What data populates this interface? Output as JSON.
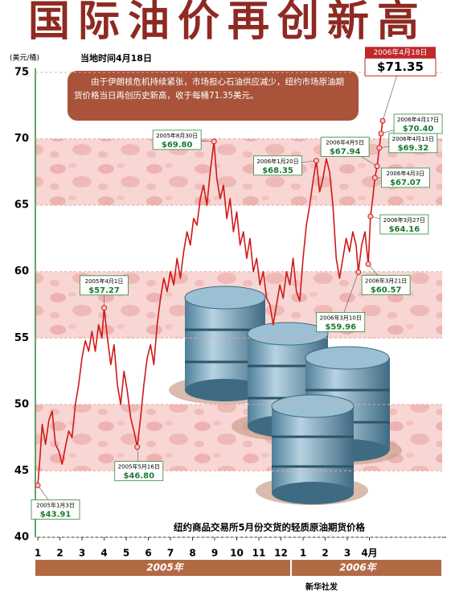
{
  "chart_data": {
    "type": "line",
    "title": "国际油价再创新高",
    "y_unit": "(美元/桶)",
    "subtitle": "当地时间4月18日",
    "description": "由于伊朗核危机持续紧张，市场担心石油供应减少，纽约市场原油期货价格当日再创历史新高，收于每桶71.35美元。",
    "caption": "纽约商品交易所5月份交货的轻质原油期货价格",
    "years": [
      "2005年",
      "2006年"
    ],
    "source": "新华社发",
    "ylim": [
      40,
      75
    ],
    "yticks": [
      40,
      45,
      50,
      55,
      60,
      65,
      70,
      75
    ],
    "xlim": [
      1,
      17
    ],
    "xticks": [
      {
        "value": 1,
        "label": "1"
      },
      {
        "value": 2,
        "label": "2"
      },
      {
        "value": 3,
        "label": "3"
      },
      {
        "value": 4,
        "label": "4"
      },
      {
        "value": 5,
        "label": "5"
      },
      {
        "value": 6,
        "label": "6"
      },
      {
        "value": 7,
        "label": "7"
      },
      {
        "value": 8,
        "label": "8"
      },
      {
        "value": 9,
        "label": "9"
      },
      {
        "value": 10,
        "label": "10"
      },
      {
        "value": 11,
        "label": "11"
      },
      {
        "value": 12,
        "label": "12"
      },
      {
        "value": 13,
        "label": "1"
      },
      {
        "value": 14,
        "label": "2"
      },
      {
        "value": 15,
        "label": "3"
      },
      {
        "value": 16,
        "label": "4月"
      }
    ],
    "color": "#d01818",
    "x": [
      1.0,
      1.1,
      1.2,
      1.35,
      1.5,
      1.65,
      1.8,
      1.95,
      2.1,
      2.25,
      2.4,
      2.55,
      2.7,
      2.85,
      3.0,
      3.15,
      3.3,
      3.45,
      3.6,
      3.75,
      3.9,
      4.0,
      4.15,
      4.3,
      4.45,
      4.6,
      4.75,
      4.9,
      5.05,
      5.2,
      5.35,
      5.5,
      5.65,
      5.8,
      5.95,
      6.1,
      6.25,
      6.4,
      6.55,
      6.7,
      6.85,
      7.0,
      7.15,
      7.3,
      7.45,
      7.6,
      7.75,
      7.9,
      8.05,
      8.2,
      8.35,
      8.5,
      8.65,
      8.8,
      8.97,
      9.1,
      9.25,
      9.4,
      9.55,
      9.7,
      9.85,
      10.0,
      10.15,
      10.3,
      10.45,
      10.6,
      10.75,
      10.9,
      11.05,
      11.2,
      11.35,
      11.5,
      11.65,
      11.8,
      11.95,
      12.1,
      12.25,
      12.4,
      12.55,
      12.7,
      12.85,
      13.0,
      13.15,
      13.3,
      13.45,
      13.6,
      13.75,
      13.9,
      14.05,
      14.2,
      14.35,
      14.5,
      14.65,
      14.8,
      14.95,
      15.1,
      15.25,
      15.4,
      15.5,
      15.65,
      15.8,
      15.95,
      16.05,
      16.15,
      16.25,
      16.35,
      16.45,
      16.53,
      16.6
    ],
    "values": [
      43.91,
      46,
      48.5,
      47,
      48.8,
      49.5,
      47,
      46.5,
      45.5,
      46.8,
      48,
      47.5,
      50,
      51.5,
      53.5,
      54.8,
      54,
      55.5,
      54,
      56,
      55,
      57.27,
      55,
      53,
      54.5,
      51.5,
      50,
      52.5,
      51,
      49,
      48,
      46.8,
      49,
      51.5,
      53.5,
      54.5,
      53,
      56,
      58,
      59.5,
      58.5,
      60,
      59,
      61,
      59.5,
      61.5,
      63,
      62,
      64,
      63.5,
      65.5,
      66.5,
      65,
      67.5,
      69.8,
      67,
      65.5,
      66.5,
      64,
      65.5,
      63,
      64.5,
      62,
      63,
      61,
      62.5,
      60,
      61,
      59,
      60,
      58,
      57.5,
      56,
      57.5,
      59,
      58,
      60,
      59,
      61,
      58.5,
      57.8,
      61,
      63.5,
      65,
      66.8,
      68.35,
      66,
      67,
      68.5,
      67.5,
      65,
      61,
      59.5,
      61,
      62.5,
      61.5,
      63,
      62,
      59.96,
      62,
      63,
      60.57,
      64.16,
      65.5,
      67.07,
      67.94,
      69.32,
      70.4,
      71.35
    ],
    "annotations": [
      {
        "date": "2005年1月3日",
        "x": 1.0,
        "value": 43.91,
        "value_label": "$43.91"
      },
      {
        "date": "2005年4月1日",
        "x": 4.0,
        "value": 57.27,
        "value_label": "$57.27"
      },
      {
        "date": "2005年5月16日",
        "x": 5.5,
        "value": 46.8,
        "value_label": "$46.80"
      },
      {
        "date": "2005年8月30日",
        "x": 8.97,
        "value": 69.8,
        "value_label": "$69.80"
      },
      {
        "date": "2006年1月20日",
        "x": 13.6,
        "value": 68.35,
        "value_label": "$68.35"
      },
      {
        "date": "2006年3月10日",
        "x": 15.5,
        "value": 59.96,
        "value_label": "$59.96"
      },
      {
        "date": "2006年3月21日",
        "x": 15.95,
        "value": 60.57,
        "value_label": "$60.57"
      },
      {
        "date": "2006年3月27日",
        "x": 16.05,
        "value": 64.16,
        "value_label": "$64.16"
      },
      {
        "date": "2006年4月3日",
        "x": 16.25,
        "value": 67.07,
        "value_label": "$67.07"
      },
      {
        "date": "2006年4月5日",
        "x": 16.35,
        "value": 67.94,
        "value_label": "$67.94"
      },
      {
        "date": "2006年4月13日",
        "x": 16.45,
        "value": 69.32,
        "value_label": "$69.32"
      },
      {
        "date": "2006年4月17日",
        "x": 16.53,
        "value": 70.4,
        "value_label": "$70.40"
      },
      {
        "date": "2006年4月18日",
        "x": 16.6,
        "value": 71.35,
        "value_label": "$71.35",
        "highlight": true
      }
    ]
  }
}
